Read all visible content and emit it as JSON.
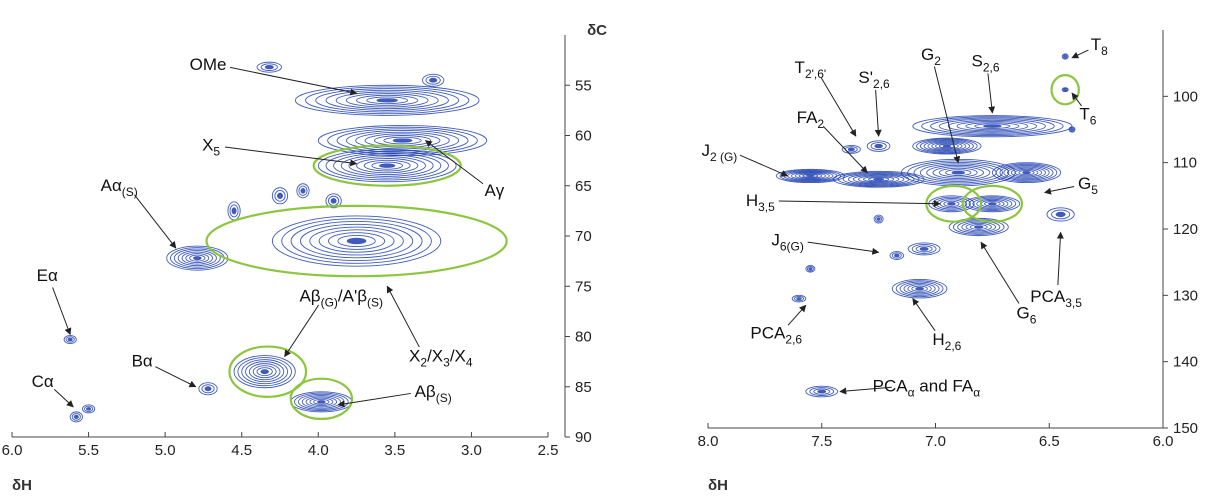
{
  "chart_data": [
    {
      "type": "scatter",
      "title": "",
      "xlabel": "δH",
      "ylabel": "δC",
      "xlim": [
        6.0,
        2.5
      ],
      "ylim": [
        90,
        50
      ],
      "x_ticks": [
        "6.0",
        "5.5",
        "5.0",
        "4.5",
        "4.0",
        "3.5",
        "3.0",
        "2.5"
      ],
      "y_ticks": [
        "55",
        "60",
        "65",
        "70",
        "75",
        "80",
        "85",
        "90"
      ],
      "x_tick_values": [
        6.0,
        5.5,
        5.0,
        4.5,
        4.0,
        3.5,
        3.0,
        2.5
      ],
      "y_tick_values": [
        55,
        60,
        65,
        70,
        75,
        80,
        85,
        90
      ],
      "grid": false,
      "contour_color": "#1f3fb0",
      "highlight_color": "#8cc63f",
      "cross_peaks": [
        {
          "x": 3.55,
          "y": 56.5,
          "rx": 0.6,
          "ry": 1.5
        },
        {
          "x": 3.45,
          "y": 60.5,
          "rx": 0.55,
          "ry": 1.5
        },
        {
          "x": 3.55,
          "y": 63.0,
          "rx": 0.45,
          "ry": 1.6
        },
        {
          "x": 3.75,
          "y": 70.5,
          "rx": 0.55,
          "ry": 2.5
        },
        {
          "x": 4.79,
          "y": 72.2,
          "rx": 0.2,
          "ry": 1.2
        },
        {
          "x": 4.35,
          "y": 83.5,
          "rx": 0.2,
          "ry": 1.6
        },
        {
          "x": 3.98,
          "y": 86.5,
          "rx": 0.2,
          "ry": 1.0
        },
        {
          "x": 4.72,
          "y": 85.2,
          "rx": 0.06,
          "ry": 0.6
        },
        {
          "x": 5.58,
          "y": 88.0,
          "rx": 0.04,
          "ry": 0.5
        },
        {
          "x": 5.5,
          "y": 87.2,
          "rx": 0.04,
          "ry": 0.4
        },
        {
          "x": 5.62,
          "y": 80.3,
          "rx": 0.04,
          "ry": 0.4
        },
        {
          "x": 4.32,
          "y": 53.2,
          "rx": 0.08,
          "ry": 0.5
        },
        {
          "x": 4.55,
          "y": 67.5,
          "rx": 0.04,
          "ry": 0.9
        },
        {
          "x": 4.25,
          "y": 66.0,
          "rx": 0.05,
          "ry": 0.8
        },
        {
          "x": 4.1,
          "y": 65.5,
          "rx": 0.04,
          "ry": 0.7
        },
        {
          "x": 3.9,
          "y": 66.5,
          "rx": 0.05,
          "ry": 0.7
        },
        {
          "x": 3.25,
          "y": 54.5,
          "rx": 0.07,
          "ry": 0.6
        }
      ],
      "annotations": [
        {
          "text": "OMe",
          "x": 4.72,
          "y": 53.5,
          "ax": 3.75,
          "ay": 55.8
        },
        {
          "text": "X",
          "sub": "5",
          "x": 4.7,
          "y": 61.5,
          "ax": 3.75,
          "ay": 62.8
        },
        {
          "text": "Aγ",
          "x": 2.85,
          "y": 66.0,
          "ax": 3.3,
          "ay": 60.5
        },
        {
          "text": "Aα",
          "sub": "(S)",
          "x": 5.3,
          "y": 65.5,
          "ax": 4.93,
          "ay": 71.2
        },
        {
          "text": "Eα",
          "x": 5.77,
          "y": 74.5,
          "ax": 5.62,
          "ay": 79.8
        },
        {
          "text": "Aβ",
          "sub": "(G)",
          "text2": "/A'β",
          "sub2": "(S)",
          "x": 3.85,
          "y": 76.5,
          "ax": 4.22,
          "ay": 82.0
        },
        {
          "text": "X",
          "sub": "2",
          "text2": "/X",
          "sub2": "3",
          "text3": "/X",
          "sub3": "4",
          "x": 3.2,
          "y": 82.5,
          "ax": 3.55,
          "ay": 75.0
        },
        {
          "text": "Bα",
          "x": 5.15,
          "y": 83.0,
          "ax": 4.8,
          "ay": 85.0
        },
        {
          "text": "Cα",
          "x": 5.8,
          "y": 85.0,
          "ax": 5.6,
          "ay": 87.0
        },
        {
          "text": "Aβ",
          "sub": "(S)",
          "x": 3.25,
          "y": 86.0,
          "ax": 3.87,
          "ay": 86.8
        }
      ],
      "highlights": [
        {
          "x": 3.55,
          "y": 63.0,
          "rx": 0.48,
          "ry": 2.0
        },
        {
          "x": 3.75,
          "y": 70.5,
          "rx": 0.98,
          "ry": 3.5
        },
        {
          "x": 4.33,
          "y": 83.5,
          "rx": 0.25,
          "ry": 2.5
        },
        {
          "x": 3.98,
          "y": 86.2,
          "rx": 0.2,
          "ry": 2.0
        }
      ]
    },
    {
      "type": "scatter",
      "title": "",
      "xlabel": "δH",
      "ylabel": "",
      "xlim": [
        8.0,
        6.0
      ],
      "ylim": [
        150,
        90
      ],
      "x_ticks": [
        "8.0",
        "7.5",
        "7.0",
        "6.5",
        "6.0"
      ],
      "y_ticks": [
        "100",
        "110",
        "120",
        "130",
        "140",
        "150"
      ],
      "x_tick_values": [
        8.0,
        7.5,
        7.0,
        6.5,
        6.0
      ],
      "y_tick_values": [
        100,
        110,
        120,
        130,
        140,
        150
      ],
      "grid": false,
      "contour_color": "#1f3fb0",
      "highlight_color": "#8cc63f",
      "cross_peaks": [
        {
          "x": 6.75,
          "y": 104.5,
          "rx": 0.35,
          "ry": 1.6
        },
        {
          "x": 6.95,
          "y": 107.5,
          "rx": 0.15,
          "ry": 1.2
        },
        {
          "x": 6.9,
          "y": 111.5,
          "rx": 0.25,
          "ry": 2.0
        },
        {
          "x": 6.6,
          "y": 111.5,
          "rx": 0.15,
          "ry": 1.5
        },
        {
          "x": 7.25,
          "y": 112.5,
          "rx": 0.2,
          "ry": 1.2
        },
        {
          "x": 7.55,
          "y": 112.0,
          "rx": 0.15,
          "ry": 1.0
        },
        {
          "x": 7.37,
          "y": 108.0,
          "rx": 0.04,
          "ry": 0.6
        },
        {
          "x": 7.25,
          "y": 107.5,
          "rx": 0.05,
          "ry": 0.8
        },
        {
          "x": 6.93,
          "y": 116.2,
          "rx": 0.1,
          "ry": 1.2
        },
        {
          "x": 6.75,
          "y": 116.2,
          "rx": 0.12,
          "ry": 1.2
        },
        {
          "x": 6.81,
          "y": 119.7,
          "rx": 0.13,
          "ry": 1.3
        },
        {
          "x": 6.45,
          "y": 117.8,
          "rx": 0.06,
          "ry": 1.0
        },
        {
          "x": 7.05,
          "y": 123.0,
          "rx": 0.07,
          "ry": 0.9
        },
        {
          "x": 7.17,
          "y": 124.0,
          "rx": 0.03,
          "ry": 0.6
        },
        {
          "x": 7.25,
          "y": 118.5,
          "rx": 0.02,
          "ry": 0.6
        },
        {
          "x": 7.07,
          "y": 129.0,
          "rx": 0.12,
          "ry": 1.4
        },
        {
          "x": 7.5,
          "y": 144.5,
          "rx": 0.07,
          "ry": 0.8
        },
        {
          "x": 7.6,
          "y": 130.5,
          "rx": 0.03,
          "ry": 0.5
        },
        {
          "x": 7.55,
          "y": 126.0,
          "rx": 0.02,
          "ry": 0.5
        },
        {
          "x": 6.43,
          "y": 94.0,
          "rx": 0.01,
          "ry": 0.4
        },
        {
          "x": 6.43,
          "y": 99.0,
          "rx": 0.01,
          "ry": 0.3
        },
        {
          "x": 6.4,
          "y": 105.0,
          "rx": 0.01,
          "ry": 0.4
        }
      ],
      "annotations": [
        {
          "text": "T",
          "sub": "8",
          "x": 6.28,
          "y": 93.0,
          "ax": 6.4,
          "ay": 94.2
        },
        {
          "text": "T",
          "sub": "2',6'",
          "x": 7.55,
          "y": 96.5,
          "ax": 7.35,
          "ay": 106.0
        },
        {
          "text": "S'",
          "sub": "2,6",
          "x": 7.27,
          "y": 98.0,
          "ax": 7.25,
          "ay": 106.0
        },
        {
          "text": "G",
          "sub": "2",
          "x": 7.02,
          "y": 94.5,
          "ax": 6.9,
          "ay": 110.0
        },
        {
          "text": "S",
          "sub": "2,6",
          "x": 6.78,
          "y": 95.5,
          "ax": 6.75,
          "ay": 102.5
        },
        {
          "text": "T",
          "sub": "6",
          "x": 6.33,
          "y": 103.5,
          "ax": 6.4,
          "ay": 99.5
        },
        {
          "text": "FA",
          "sub": "2",
          "x": 7.55,
          "y": 104.0,
          "ax": 7.3,
          "ay": 111.5
        },
        {
          "text": "J",
          "sub": "2 (G)",
          "x": 7.95,
          "y": 109.0,
          "ax": 7.65,
          "ay": 112.0
        },
        {
          "text": "H",
          "sub": "3,5",
          "x": 7.77,
          "y": 116.5,
          "ax": 6.98,
          "ay": 116.2
        },
        {
          "text": "G",
          "sub": "5",
          "x": 6.33,
          "y": 114.0,
          "ax": 6.52,
          "ay": 114.5
        },
        {
          "text": "J",
          "sub": "6(G)",
          "x": 7.65,
          "y": 122.5,
          "ax": 7.25,
          "ay": 123.5
        },
        {
          "text": "G",
          "sub": "6",
          "x": 6.6,
          "y": 133.5,
          "ax": 6.8,
          "ay": 122.0
        },
        {
          "text": "PCA",
          "sub": "3,5",
          "x": 6.47,
          "y": 131.0,
          "ax": 6.45,
          "ay": 120.5
        },
        {
          "text": "H",
          "sub": "2,6",
          "x": 6.95,
          "y": 137.5,
          "ax": 7.1,
          "ay": 130.5
        },
        {
          "text": "PCA",
          "sub": "2,6",
          "x": 7.7,
          "y": 136.5,
          "ax": 7.57,
          "ay": 131.5
        },
        {
          "text": "PCA",
          "sub": "α",
          "text2": " and FA",
          "sub2": "α",
          "x": 7.04,
          "y": 144.5,
          "ax": 7.42,
          "ay": 144.5
        }
      ],
      "highlights": [
        {
          "x": 6.43,
          "y": 99.0,
          "rx": 0.06,
          "ry": 2.2
        },
        {
          "x": 6.92,
          "y": 116.2,
          "rx": 0.12,
          "ry": 2.7
        },
        {
          "x": 6.75,
          "y": 116.2,
          "rx": 0.13,
          "ry": 2.7
        }
      ]
    }
  ]
}
